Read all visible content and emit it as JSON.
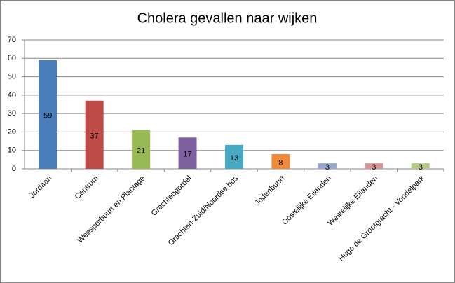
{
  "chart_data": {
    "type": "bar",
    "title": "Cholera gevallen naar wijken",
    "categories": [
      "Jordaan",
      "Centrum",
      "Weesperbuurt en Plantage",
      "Grachtengordel",
      "Grachten-Zuid/Noordse bos",
      "Jodenbuurt",
      "Oostelijke Eilanden",
      "Westelijke Eilanden",
      "Hugo de Grootgracht - Vondelpark"
    ],
    "values": [
      59,
      37,
      21,
      17,
      13,
      8,
      3,
      3,
      3
    ],
    "colors": [
      "#4a7ebb",
      "#be4b48",
      "#98b954",
      "#7d60a0",
      "#46aac5",
      "#f08a3a",
      "#93a9d0",
      "#d99694",
      "#b3cc82"
    ],
    "ylim": [
      0,
      70
    ],
    "yticks": [
      0,
      10,
      20,
      30,
      40,
      50,
      60,
      70
    ],
    "grid": true
  }
}
